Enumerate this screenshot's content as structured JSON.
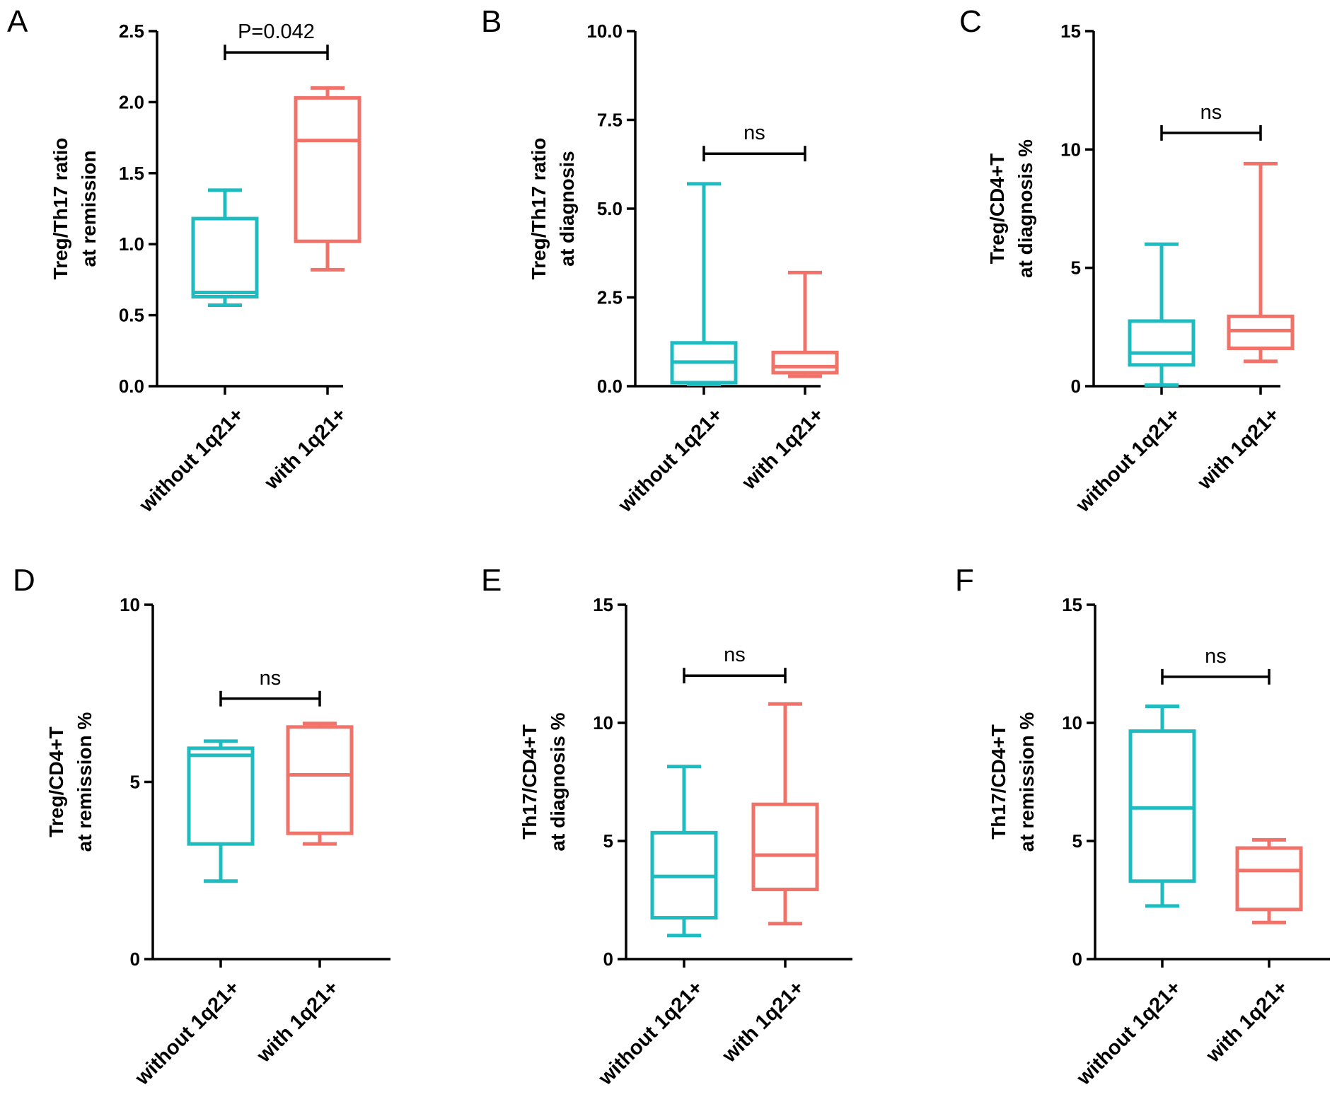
{
  "chart_data": [
    {
      "panel": "A",
      "type": "box",
      "ylabel_line1": "Treg/Th17 ratio",
      "ylabel_line2": "at remission",
      "ylim": [
        0,
        2.5
      ],
      "yticks": [
        "0.0",
        "0.5",
        "1.0",
        "1.5",
        "2.0",
        "2.5"
      ],
      "categories": [
        "without 1q21+",
        "with 1q21+"
      ],
      "boxes": [
        {
          "group": "without 1q21+",
          "min": 0.57,
          "q1": 0.63,
          "median": 0.66,
          "q3": 1.18,
          "max": 1.38,
          "color": "#1ebcc0"
        },
        {
          "group": "with 1q21+",
          "min": 0.82,
          "q1": 1.02,
          "median": 1.73,
          "q3": 2.03,
          "max": 2.1,
          "color": "#f07268"
        }
      ],
      "significance": {
        "label": "P=0.042",
        "level": 2.35
      }
    },
    {
      "panel": "B",
      "type": "box",
      "ylabel_line1": "Treg/Th17 ratio",
      "ylabel_line2": "at diagnosis",
      "ylim": [
        0,
        10
      ],
      "yticks": [
        "0.0",
        "2.5",
        "5.0",
        "7.5",
        "10.0"
      ],
      "categories": [
        "without 1q21+",
        "with 1q21+"
      ],
      "boxes": [
        {
          "group": "without 1q21+",
          "min": 0.05,
          "q1": 0.1,
          "median": 0.68,
          "q3": 1.22,
          "max": 5.7,
          "color": "#1ebcc0"
        },
        {
          "group": "with 1q21+",
          "min": 0.28,
          "q1": 0.38,
          "median": 0.55,
          "q3": 0.95,
          "max": 3.2,
          "color": "#f07268"
        }
      ],
      "significance": {
        "label": "ns",
        "level": 6.55
      }
    },
    {
      "panel": "C",
      "type": "box",
      "ylabel_line1": "Treg/CD4+T",
      "ylabel_line2": "at diagnosis %",
      "ylim": [
        0,
        15
      ],
      "yticks": [
        "0",
        "5",
        "10",
        "15"
      ],
      "categories": [
        "without 1q21+",
        "with 1q21+"
      ],
      "boxes": [
        {
          "group": "without 1q21+",
          "min": 0.05,
          "q1": 0.9,
          "median": 1.4,
          "q3": 2.75,
          "max": 6.0,
          "color": "#1ebcc0"
        },
        {
          "group": "with 1q21+",
          "min": 1.05,
          "q1": 1.6,
          "median": 2.35,
          "q3": 2.95,
          "max": 9.4,
          "color": "#f07268"
        }
      ],
      "significance": {
        "label": "ns",
        "level": 10.7
      }
    },
    {
      "panel": "D",
      "type": "box",
      "ylabel_line1": "Treg/CD4+T",
      "ylabel_line2": "at remission %",
      "ylim": [
        0,
        10
      ],
      "yticks": [
        "0",
        "5",
        "10"
      ],
      "categories": [
        "without 1q21+",
        "with 1q21+"
      ],
      "boxes": [
        {
          "group": "without 1q21+",
          "min": 2.2,
          "q1": 3.25,
          "median": 5.75,
          "q3": 5.95,
          "max": 6.15,
          "color": "#1ebcc0"
        },
        {
          "group": "with 1q21+",
          "min": 3.25,
          "q1": 3.55,
          "median": 5.2,
          "q3": 6.55,
          "max": 6.65,
          "color": "#f07268"
        }
      ],
      "significance": {
        "label": "ns",
        "level": 7.35
      }
    },
    {
      "panel": "E",
      "type": "box",
      "ylabel_line1": "Th17/CD4+T",
      "ylabel_line2": "at diagnosis %",
      "ylim": [
        0,
        15
      ],
      "yticks": [
        "0",
        "5",
        "10",
        "15"
      ],
      "categories": [
        "without 1q21+",
        "with 1q21+"
      ],
      "boxes": [
        {
          "group": "without 1q21+",
          "min": 1.0,
          "q1": 1.75,
          "median": 3.5,
          "q3": 5.35,
          "max": 8.15,
          "color": "#1ebcc0"
        },
        {
          "group": "with 1q21+",
          "min": 1.5,
          "q1": 2.95,
          "median": 4.4,
          "q3": 6.55,
          "max": 10.8,
          "color": "#f07268"
        }
      ],
      "significance": {
        "label": "ns",
        "level": 12.0
      }
    },
    {
      "panel": "F",
      "type": "box",
      "ylabel_line1": "Th17/CD4+T",
      "ylabel_line2": "at remission %",
      "ylim": [
        0,
        15
      ],
      "yticks": [
        "0",
        "5",
        "10",
        "15"
      ],
      "categories": [
        "without 1q21+",
        "with 1q21+"
      ],
      "boxes": [
        {
          "group": "without 1q21+",
          "min": 2.25,
          "q1": 3.3,
          "median": 6.4,
          "q3": 9.65,
          "max": 10.7,
          "color": "#1ebcc0"
        },
        {
          "group": "with 1q21+",
          "min": 1.55,
          "q1": 2.1,
          "median": 3.75,
          "q3": 4.7,
          "max": 5.05,
          "color": "#f07268"
        }
      ],
      "significance": {
        "label": "ns",
        "level": 11.95
      }
    }
  ]
}
